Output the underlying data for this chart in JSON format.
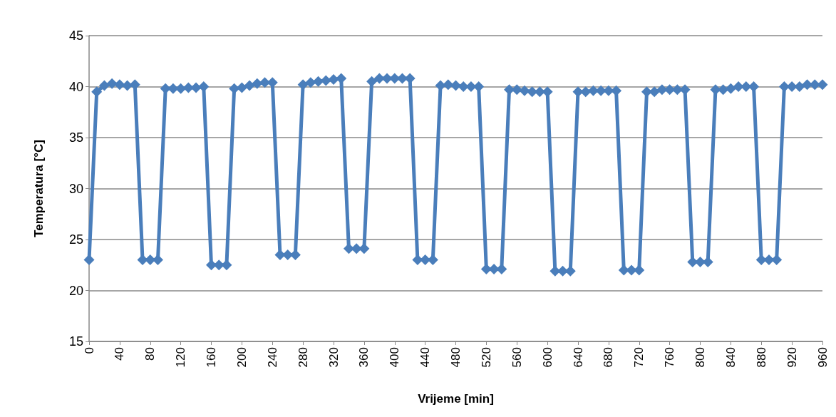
{
  "chart_data": {
    "type": "line",
    "xlabel": "Vrijeme [min]",
    "ylabel": "Temperatura [°C]",
    "x": [
      0,
      10,
      20,
      30,
      40,
      50,
      60,
      70,
      80,
      90,
      100,
      110,
      120,
      130,
      140,
      150,
      160,
      170,
      180,
      190,
      200,
      210,
      220,
      230,
      240,
      250,
      260,
      270,
      280,
      290,
      300,
      310,
      320,
      330,
      340,
      350,
      360,
      370,
      380,
      390,
      400,
      410,
      420,
      430,
      440,
      450,
      460,
      470,
      480,
      490,
      500,
      510,
      520,
      530,
      540,
      550,
      560,
      570,
      580,
      590,
      600,
      610,
      620,
      630,
      640,
      650,
      660,
      670,
      680,
      690,
      700,
      710,
      720,
      730,
      740,
      750,
      760,
      770,
      780,
      790,
      800,
      810,
      820,
      830,
      840,
      850,
      860,
      870,
      880,
      890,
      900,
      910,
      920,
      930,
      940,
      950,
      960
    ],
    "series": [
      {
        "color": "#4a7ebb",
        "values": [
          23,
          39.5,
          40.1,
          40.3,
          40.2,
          40.1,
          40.2,
          23,
          23,
          23,
          39.8,
          39.8,
          39.8,
          39.9,
          39.9,
          40.0,
          22.5,
          22.5,
          22.5,
          39.8,
          39.9,
          40.1,
          40.3,
          40.4,
          40.4,
          23.5,
          23.5,
          23.5,
          40.2,
          40.4,
          40.5,
          40.6,
          40.7,
          40.8,
          24.1,
          24.1,
          24.1,
          40.5,
          40.8,
          40.8,
          40.8,
          40.8,
          40.8,
          23.0,
          23.0,
          23.0,
          40.1,
          40.2,
          40.1,
          40.0,
          40.0,
          40.0,
          22.1,
          22.1,
          22.1,
          39.7,
          39.7,
          39.6,
          39.5,
          39.5,
          39.5,
          21.9,
          21.9,
          21.9,
          39.5,
          39.5,
          39.6,
          39.6,
          39.6,
          39.6,
          22.0,
          22.0,
          22.0,
          39.5,
          39.5,
          39.7,
          39.7,
          39.7,
          39.7,
          22.8,
          22.8,
          22.8,
          39.7,
          39.7,
          39.8,
          40.0,
          40.0,
          40.0,
          23.0,
          23.0,
          23.0,
          40.0,
          40.0,
          40.0,
          40.2,
          40.2,
          40.2
        ]
      }
    ],
    "xlim": [
      0,
      960
    ],
    "xticks": [
      0,
      40,
      80,
      120,
      160,
      200,
      240,
      280,
      320,
      360,
      400,
      440,
      480,
      520,
      560,
      600,
      640,
      680,
      720,
      760,
      800,
      840,
      880,
      920,
      960
    ],
    "ylim": [
      15,
      45
    ],
    "yticks": [
      15,
      20,
      25,
      30,
      35,
      40,
      45
    ],
    "grid": "y",
    "marker": "diamond",
    "line_style": "solid"
  }
}
